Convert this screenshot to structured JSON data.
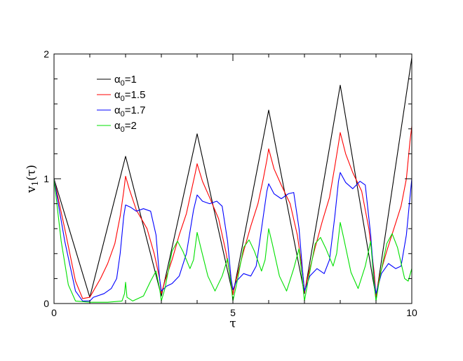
{
  "chart_data": {
    "type": "line",
    "xlabel": "τ",
    "ylabel_main": "v",
    "ylabel_sub": "1",
    "ylabel_arg": "(τ)",
    "xlim": [
      0,
      10
    ],
    "ylim": [
      0,
      2
    ],
    "xticks": [
      0,
      5,
      10
    ],
    "yticks": [
      0,
      1,
      2
    ],
    "legend_position": "top-left",
    "grid": false,
    "series": [
      {
        "name": "α0=1",
        "legend_main": "α",
        "legend_sub": "0",
        "legend_rest": "=1",
        "color": "#000000",
        "points": [
          [
            0,
            1.0
          ],
          [
            1,
            0.05
          ],
          [
            2,
            1.18
          ],
          [
            3,
            0.06
          ],
          [
            4,
            1.36
          ],
          [
            5,
            0.07
          ],
          [
            6,
            1.55
          ],
          [
            7,
            0.08
          ],
          [
            8,
            1.75
          ],
          [
            9,
            0.05
          ],
          [
            10,
            1.97
          ]
        ]
      },
      {
        "name": "α0=1.5",
        "legend_main": "α",
        "legend_sub": "0",
        "legend_rest": "=1.5",
        "color": "#ff0000",
        "points": [
          [
            0,
            1.0
          ],
          [
            0.3,
            0.6
          ],
          [
            0.6,
            0.18
          ],
          [
            0.8,
            0.04
          ],
          [
            1.0,
            0.05
          ],
          [
            1.1,
            0.1
          ],
          [
            1.3,
            0.2
          ],
          [
            1.5,
            0.32
          ],
          [
            1.7,
            0.48
          ],
          [
            1.85,
            0.7
          ],
          [
            1.95,
            0.9
          ],
          [
            2.0,
            1.02
          ],
          [
            2.1,
            0.92
          ],
          [
            2.3,
            0.75
          ],
          [
            2.6,
            0.6
          ],
          [
            2.8,
            0.4
          ],
          [
            2.95,
            0.2
          ],
          [
            3.0,
            0.08
          ],
          [
            3.1,
            0.18
          ],
          [
            3.3,
            0.35
          ],
          [
            3.5,
            0.55
          ],
          [
            3.7,
            0.72
          ],
          [
            3.85,
            0.92
          ],
          [
            3.95,
            1.05
          ],
          [
            4.0,
            1.12
          ],
          [
            4.15,
            0.98
          ],
          [
            4.35,
            0.85
          ],
          [
            4.6,
            0.68
          ],
          [
            4.8,
            0.42
          ],
          [
            4.95,
            0.18
          ],
          [
            5.0,
            0.07
          ],
          [
            5.1,
            0.2
          ],
          [
            5.3,
            0.42
          ],
          [
            5.5,
            0.62
          ],
          [
            5.7,
            0.8
          ],
          [
            5.85,
            1.0
          ],
          [
            5.95,
            1.15
          ],
          [
            6.0,
            1.24
          ],
          [
            6.15,
            1.08
          ],
          [
            6.35,
            0.95
          ],
          [
            6.6,
            0.8
          ],
          [
            6.8,
            0.55
          ],
          [
            6.95,
            0.25
          ],
          [
            7.0,
            0.09
          ],
          [
            7.1,
            0.22
          ],
          [
            7.3,
            0.45
          ],
          [
            7.5,
            0.66
          ],
          [
            7.7,
            0.85
          ],
          [
            7.85,
            1.1
          ],
          [
            7.95,
            1.28
          ],
          [
            8.0,
            1.37
          ],
          [
            8.15,
            1.2
          ],
          [
            8.35,
            1.05
          ],
          [
            8.6,
            0.9
          ],
          [
            8.8,
            0.6
          ],
          [
            8.95,
            0.25
          ],
          [
            9.0,
            0.06
          ],
          [
            9.1,
            0.22
          ],
          [
            9.3,
            0.42
          ],
          [
            9.5,
            0.6
          ],
          [
            9.7,
            0.78
          ],
          [
            9.85,
            1.0
          ],
          [
            9.95,
            1.3
          ],
          [
            10.0,
            1.42
          ]
        ]
      },
      {
        "name": "α0=1.7",
        "legend_main": "α",
        "legend_sub": "0",
        "legend_rest": "=1.7",
        "color": "#0000ff",
        "points": [
          [
            0,
            1.0
          ],
          [
            0.3,
            0.5
          ],
          [
            0.6,
            0.1
          ],
          [
            0.8,
            0.02
          ],
          [
            1.0,
            0.02
          ],
          [
            1.1,
            0.05
          ],
          [
            1.4,
            0.08
          ],
          [
            1.6,
            0.12
          ],
          [
            1.75,
            0.2
          ],
          [
            1.85,
            0.4
          ],
          [
            1.95,
            0.7
          ],
          [
            2.0,
            0.79
          ],
          [
            2.15,
            0.77
          ],
          [
            2.3,
            0.74
          ],
          [
            2.5,
            0.76
          ],
          [
            2.7,
            0.74
          ],
          [
            2.85,
            0.55
          ],
          [
            2.95,
            0.2
          ],
          [
            3.0,
            0.1
          ],
          [
            3.15,
            0.14
          ],
          [
            3.3,
            0.16
          ],
          [
            3.5,
            0.22
          ],
          [
            3.7,
            0.4
          ],
          [
            3.9,
            0.75
          ],
          [
            4.0,
            0.87
          ],
          [
            4.15,
            0.82
          ],
          [
            4.35,
            0.8
          ],
          [
            4.55,
            0.82
          ],
          [
            4.7,
            0.78
          ],
          [
            4.85,
            0.5
          ],
          [
            4.95,
            0.2
          ],
          [
            5.0,
            0.11
          ],
          [
            5.1,
            0.18
          ],
          [
            5.3,
            0.24
          ],
          [
            5.5,
            0.22
          ],
          [
            5.65,
            0.3
          ],
          [
            5.8,
            0.6
          ],
          [
            5.95,
            0.9
          ],
          [
            6.0,
            0.96
          ],
          [
            6.15,
            0.88
          ],
          [
            6.35,
            0.84
          ],
          [
            6.55,
            0.88
          ],
          [
            6.7,
            0.89
          ],
          [
            6.85,
            0.6
          ],
          [
            6.95,
            0.25
          ],
          [
            7.0,
            0.1
          ],
          [
            7.15,
            0.22
          ],
          [
            7.35,
            0.28
          ],
          [
            7.55,
            0.24
          ],
          [
            7.7,
            0.35
          ],
          [
            7.85,
            0.7
          ],
          [
            7.95,
            0.98
          ],
          [
            8.0,
            1.05
          ],
          [
            8.15,
            0.97
          ],
          [
            8.35,
            0.92
          ],
          [
            8.55,
            0.98
          ],
          [
            8.7,
            0.95
          ],
          [
            8.85,
            0.55
          ],
          [
            8.95,
            0.18
          ],
          [
            9.0,
            0.08
          ],
          [
            9.15,
            0.24
          ],
          [
            9.35,
            0.32
          ],
          [
            9.55,
            0.28
          ],
          [
            9.7,
            0.3
          ],
          [
            9.85,
            0.55
          ],
          [
            9.95,
            0.85
          ],
          [
            10.0,
            1.0
          ]
        ]
      },
      {
        "name": "α0=2",
        "legend_main": "α",
        "legend_sub": "0",
        "legend_rest": "=2",
        "color": "#00e000",
        "points": [
          [
            0,
            1.0
          ],
          [
            0.2,
            0.5
          ],
          [
            0.4,
            0.15
          ],
          [
            0.6,
            0.02
          ],
          [
            1.0,
            0.01
          ],
          [
            1.5,
            0.01
          ],
          [
            1.9,
            0.02
          ],
          [
            1.97,
            0.08
          ],
          [
            2.0,
            0.17
          ],
          [
            2.04,
            0.05
          ],
          [
            2.2,
            0.02
          ],
          [
            2.5,
            0.06
          ],
          [
            2.7,
            0.18
          ],
          [
            2.85,
            0.26
          ],
          [
            2.95,
            0.12
          ],
          [
            3.0,
            0.02
          ],
          [
            3.1,
            0.12
          ],
          [
            3.3,
            0.42
          ],
          [
            3.45,
            0.5
          ],
          [
            3.6,
            0.42
          ],
          [
            3.8,
            0.28
          ],
          [
            3.9,
            0.35
          ],
          [
            4.0,
            0.57
          ],
          [
            4.1,
            0.45
          ],
          [
            4.3,
            0.22
          ],
          [
            4.5,
            0.1
          ],
          [
            4.7,
            0.22
          ],
          [
            4.85,
            0.36
          ],
          [
            4.95,
            0.15
          ],
          [
            5.0,
            0.02
          ],
          [
            5.1,
            0.15
          ],
          [
            5.3,
            0.45
          ],
          [
            5.45,
            0.51
          ],
          [
            5.6,
            0.42
          ],
          [
            5.8,
            0.26
          ],
          [
            5.9,
            0.35
          ],
          [
            6.0,
            0.6
          ],
          [
            6.1,
            0.48
          ],
          [
            6.3,
            0.22
          ],
          [
            6.5,
            0.1
          ],
          [
            6.7,
            0.28
          ],
          [
            6.85,
            0.44
          ],
          [
            6.95,
            0.16
          ],
          [
            7.0,
            0.02
          ],
          [
            7.1,
            0.18
          ],
          [
            7.3,
            0.48
          ],
          [
            7.45,
            0.53
          ],
          [
            7.6,
            0.44
          ],
          [
            7.8,
            0.3
          ],
          [
            7.9,
            0.4
          ],
          [
            8.0,
            0.65
          ],
          [
            8.1,
            0.52
          ],
          [
            8.3,
            0.25
          ],
          [
            8.5,
            0.12
          ],
          [
            8.7,
            0.3
          ],
          [
            8.85,
            0.5
          ],
          [
            8.95,
            0.15
          ],
          [
            9.0,
            0.02
          ],
          [
            9.1,
            0.2
          ],
          [
            9.3,
            0.48
          ],
          [
            9.45,
            0.56
          ],
          [
            9.6,
            0.45
          ],
          [
            9.8,
            0.2
          ],
          [
            9.9,
            0.18
          ],
          [
            10.0,
            0.28
          ]
        ]
      }
    ]
  }
}
